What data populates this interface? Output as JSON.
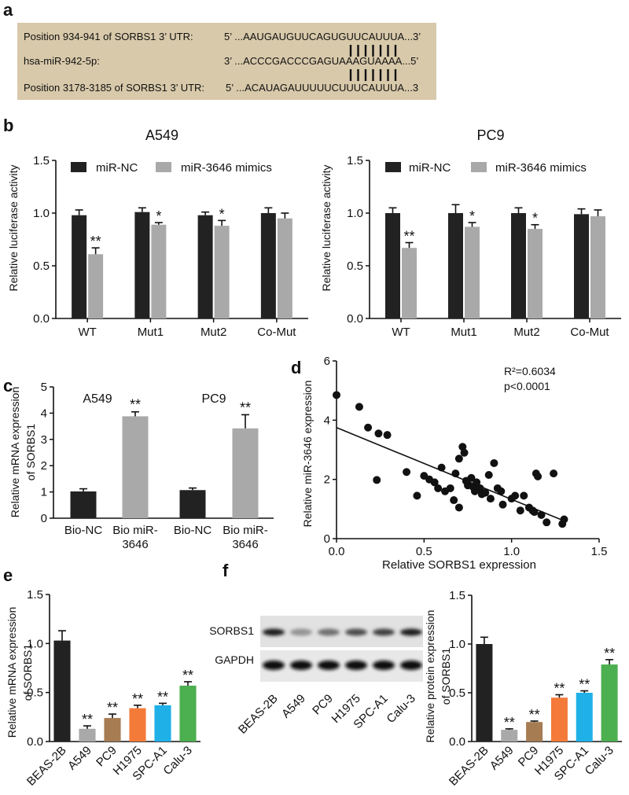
{
  "panel_labels": {
    "a": "a",
    "b": "b",
    "c": "c",
    "d": "d",
    "e": "e",
    "f": "f"
  },
  "panel_a": {
    "bg_color": "#d8c9aa",
    "rows": [
      {
        "label": "Position 934-941 of SORBS1 3’ UTR:",
        "seq": "5’ ...AAUGAUGUUCAGUGUUCAUUUA...3’"
      },
      {
        "label": "hsa-miR-942-5p:",
        "seq": "3’ ...ACCCGACCCGAGUAAAGUAAAA...5’"
      },
      {
        "label": "Position 3178-3185 of SORBS1 3’ UTR:",
        "seq": "5’ ...ACAUAGAUUUUUCUUUCAUUUA...3"
      }
    ]
  },
  "chart_data": [
    {
      "id": "b_left",
      "type": "bar",
      "title": "A549",
      "ylabel": "Relative luciferase activity",
      "xlabel": "",
      "categories": [
        "WT",
        "Mut1",
        "Mut2",
        "Co-Mut"
      ],
      "ylim": [
        0,
        1.5
      ],
      "yticks": [
        "0.0",
        "0.5",
        "1.0",
        "1.5"
      ],
      "ytick_values": [
        0,
        0.5,
        1.0,
        1.5
      ],
      "legend": "top",
      "grid": false,
      "series": [
        {
          "name": "miR-NC",
          "color": "#222222",
          "values": [
            0.98,
            1.01,
            0.98,
            1.0
          ],
          "errors": [
            0.05,
            0.04,
            0.03,
            0.05
          ],
          "labels": [
            "",
            "",
            "",
            ""
          ]
        },
        {
          "name": "miR-3646 mimics",
          "color": "#a9a9a9",
          "values": [
            0.61,
            0.89,
            0.88,
            0.95
          ],
          "errors": [
            0.06,
            0.02,
            0.05,
            0.05
          ],
          "labels": [
            "**",
            "*",
            "*",
            ""
          ]
        }
      ]
    },
    {
      "id": "b_right",
      "type": "bar",
      "title": "PC9",
      "ylabel": "Relative luciferase activity",
      "xlabel": "",
      "categories": [
        "WT",
        "Mut1",
        "Mut2",
        "Co-Mut"
      ],
      "ylim": [
        0,
        1.5
      ],
      "yticks": [
        "0.0",
        "0.5",
        "1.0",
        "1.5"
      ],
      "ytick_values": [
        0,
        0.5,
        1.0,
        1.5
      ],
      "legend": "top",
      "grid": false,
      "series": [
        {
          "name": "miR-NC",
          "color": "#222222",
          "values": [
            1.0,
            1.0,
            1.0,
            0.99
          ],
          "errors": [
            0.05,
            0.08,
            0.05,
            0.05
          ],
          "labels": [
            "",
            "",
            "",
            ""
          ]
        },
        {
          "name": "miR-3646 mimics",
          "color": "#a9a9a9",
          "values": [
            0.67,
            0.87,
            0.85,
            0.97
          ],
          "errors": [
            0.05,
            0.04,
            0.04,
            0.06
          ],
          "labels": [
            "**",
            "*",
            "*",
            ""
          ]
        }
      ]
    },
    {
      "id": "c",
      "type": "bar",
      "title": "",
      "group_titles": [
        "A549",
        "PC9"
      ],
      "ylabel_lines": [
        "Relative mRNA expression",
        "of SORBS1"
      ],
      "categories": [
        [
          "Bio-NC"
        ],
        [
          "Bio miR-",
          "3646"
        ],
        [
          "Bio-NC"
        ],
        [
          "Bio miR-",
          "3646"
        ]
      ],
      "ylim": [
        0,
        5
      ],
      "yticks": [
        "0",
        "1",
        "2",
        "3",
        "4",
        "5"
      ],
      "ytick_values": [
        0,
        1,
        2,
        3,
        4,
        5
      ],
      "values": [
        1.02,
        3.88,
        1.07,
        3.42
      ],
      "errors": [
        0.1,
        0.17,
        0.08,
        0.52
      ],
      "colors": [
        "#222222",
        "#a9a9a9",
        "#222222",
        "#a9a9a9"
      ],
      "labels": [
        "",
        "**",
        "",
        "**"
      ]
    },
    {
      "id": "d",
      "type": "scatter",
      "title": "",
      "xlabel": "Relative SORBS1 expression",
      "ylabel": "Relative miR-3646 expression",
      "xlim": [
        0,
        1.5
      ],
      "ylim": [
        0,
        6
      ],
      "xticks": [
        "0.0",
        "0.5",
        "1.0",
        "1.5"
      ],
      "xtick_values": [
        0,
        0.5,
        1.0,
        1.5
      ],
      "yticks": [
        "0",
        "2",
        "4",
        "6"
      ],
      "ytick_values": [
        0,
        2,
        4,
        6
      ],
      "annotation": [
        "R²=0.6034",
        "p<0.0001"
      ],
      "fit_line": {
        "x0": 0,
        "y0": 3.75,
        "x1": 1.3,
        "y1": 0.6
      },
      "points": [
        [
          0.0,
          4.85
        ],
        [
          0.13,
          4.45
        ],
        [
          0.18,
          3.75
        ],
        [
          0.24,
          3.55
        ],
        [
          0.29,
          3.5
        ],
        [
          0.23,
          1.98
        ],
        [
          0.4,
          2.25
        ],
        [
          0.46,
          1.45
        ],
        [
          0.5,
          2.12
        ],
        [
          0.53,
          2.0
        ],
        [
          0.56,
          1.9
        ],
        [
          0.6,
          2.4
        ],
        [
          0.58,
          1.7
        ],
        [
          0.62,
          1.6
        ],
        [
          0.65,
          1.7
        ],
        [
          0.67,
          1.3
        ],
        [
          0.7,
          2.7
        ],
        [
          0.68,
          2.2
        ],
        [
          0.7,
          1.05
        ],
        [
          0.72,
          3.1
        ],
        [
          0.73,
          2.9
        ],
        [
          0.74,
          1.95
        ],
        [
          0.75,
          1.8
        ],
        [
          0.77,
          2.05
        ],
        [
          0.78,
          1.75
        ],
        [
          0.79,
          1.6
        ],
        [
          0.8,
          1.9
        ],
        [
          0.82,
          1.7
        ],
        [
          0.83,
          1.5
        ],
        [
          0.85,
          1.55
        ],
        [
          0.87,
          2.15
        ],
        [
          0.88,
          1.35
        ],
        [
          0.9,
          2.55
        ],
        [
          0.92,
          1.7
        ],
        [
          0.94,
          1.6
        ],
        [
          0.95,
          1.15
        ],
        [
          1.0,
          1.35
        ],
        [
          1.02,
          1.45
        ],
        [
          1.05,
          0.95
        ],
        [
          1.07,
          1.45
        ],
        [
          1.1,
          1.05
        ],
        [
          1.12,
          0.95
        ],
        [
          1.13,
          0.9
        ],
        [
          1.14,
          2.2
        ],
        [
          1.15,
          2.1
        ],
        [
          1.17,
          0.8
        ],
        [
          1.2,
          0.55
        ],
        [
          1.24,
          2.2
        ],
        [
          1.29,
          0.5
        ],
        [
          1.3,
          0.65
        ]
      ]
    },
    {
      "id": "e",
      "type": "bar",
      "title": "",
      "ylabel_lines": [
        "Relative mRNA expression",
        "of SORBS1"
      ],
      "categories": [
        "BEAS-2B",
        "A549",
        "PC9",
        "H1975",
        "SPC-A1",
        "Calu-3"
      ],
      "ylim": [
        0,
        1.5
      ],
      "yticks": [
        "0.0",
        "0.5",
        "1.0",
        "1.5"
      ],
      "ytick_values": [
        0,
        0.5,
        1.0,
        1.5
      ],
      "values": [
        1.03,
        0.13,
        0.24,
        0.34,
        0.37,
        0.57
      ],
      "errors": [
        0.1,
        0.03,
        0.04,
        0.03,
        0.02,
        0.04
      ],
      "colors": [
        "#222222",
        "#a9a9a9",
        "#a67c52",
        "#f47a3a",
        "#1fb0e8",
        "#4caf50"
      ],
      "labels": [
        "",
        "**",
        "**",
        "**",
        "**",
        "**"
      ]
    },
    {
      "id": "f",
      "type": "bar",
      "title": "",
      "ylabel_lines": [
        "Relative protein expression",
        "of SORBS1"
      ],
      "categories": [
        "BEAS-2B",
        "A549",
        "PC9",
        "H1975",
        "SPC-A1",
        "Calu-3"
      ],
      "ylim": [
        0,
        1.5
      ],
      "yticks": [
        "0.0",
        "0.5",
        "1.0",
        "1.5"
      ],
      "ytick_values": [
        0,
        0.5,
        1.0,
        1.5
      ],
      "values": [
        1.0,
        0.12,
        0.2,
        0.45,
        0.5,
        0.79
      ],
      "errors": [
        0.07,
        0.01,
        0.01,
        0.03,
        0.02,
        0.05
      ],
      "colors": [
        "#222222",
        "#a9a9a9",
        "#a67c52",
        "#f47a3a",
        "#1fb0e8",
        "#4caf50"
      ],
      "labels": [
        "",
        "**",
        "**",
        "**",
        "**",
        "**"
      ]
    }
  ],
  "blot": {
    "bands": [
      {
        "label": "SORBS1",
        "intensities": [
          0.95,
          0.45,
          0.6,
          0.75,
          0.8,
          0.95
        ]
      },
      {
        "label": "GAPDH",
        "intensities": [
          1,
          1,
          1,
          1,
          1,
          1
        ]
      }
    ],
    "lanes": [
      "BEAS-2B",
      "A549",
      "PC9",
      "H1975",
      "SPC-A1",
      "Calu-3"
    ]
  }
}
